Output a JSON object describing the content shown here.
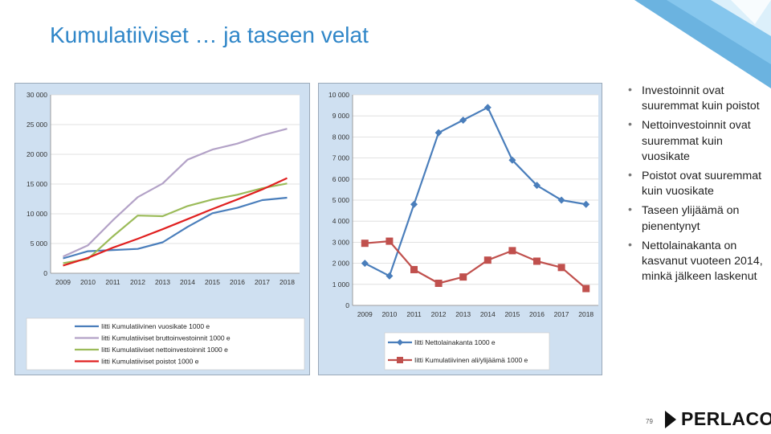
{
  "slide": {
    "title": "Kumulatiiviset … ja taseen velat",
    "page_number": "79",
    "logo_text": "PERLACON",
    "accent_color": "#2f86c8"
  },
  "bullets": [
    "Investoinnit ovat suuremmat kuin poistot",
    "Nettoinvestoinnit ovat suuremmat kuin vuosikate",
    "Poistot ovat suuremmat kuin vuosikate",
    "Taseen ylijäämä on pienentynyt",
    "Nettolainakanta on kasvanut vuoteen 2014, minkä jälkeen laskenut"
  ],
  "chart_data": [
    {
      "type": "line",
      "title": "",
      "xlabel": "",
      "ylabel": "",
      "x": [
        "2009",
        "2010",
        "2011",
        "2012",
        "2013",
        "2014",
        "2015",
        "2016",
        "2017",
        "2018"
      ],
      "ylim": [
        0,
        30000
      ],
      "yticks": [
        "0",
        "5 000",
        "10 000",
        "15 000",
        "20 000",
        "25 000",
        "30 000"
      ],
      "ytick_values": [
        0,
        5000,
        10000,
        15000,
        20000,
        25000,
        30000
      ],
      "grid": true,
      "legend": "bottom",
      "series": [
        {
          "name": "Iitti Kumulatiivinen vuosikate 1000 e",
          "color": "#4a7ebb",
          "markers": false,
          "values": [
            2500,
            3700,
            3900,
            4100,
            5200,
            7800,
            10100,
            11000,
            12300,
            12700
          ]
        },
        {
          "name": "Iitti Kumulatiiviset bruttoinvestoinnit 1000 e",
          "color": "#b3a2c7",
          "markers": false,
          "values": [
            2800,
            4700,
            8900,
            12800,
            15100,
            19100,
            20800,
            21800,
            23200,
            24300
          ]
        },
        {
          "name": "Iitti Kumulatiiviset nettoinvestoinnit 1000 e",
          "color": "#9bbb59",
          "markers": false,
          "values": [
            1700,
            2400,
            6200,
            9700,
            9600,
            11300,
            12400,
            13200,
            14300,
            15100
          ]
        },
        {
          "name": "Iitti Kumulatiiviset poistot 1000 e",
          "color": "#e02020",
          "markers": false,
          "values": [
            1300,
            2600,
            4300,
            5800,
            7400,
            9100,
            10800,
            12400,
            14100,
            16000
          ]
        }
      ]
    },
    {
      "type": "line",
      "title": "",
      "xlabel": "",
      "ylabel": "",
      "x": [
        "2009",
        "2010",
        "2011",
        "2012",
        "2013",
        "2014",
        "2015",
        "2016",
        "2017",
        "2018"
      ],
      "ylim": [
        0,
        10000
      ],
      "yticks": [
        "0",
        "1 000",
        "2 000",
        "3 000",
        "4 000",
        "5 000",
        "6 000",
        "7 000",
        "8 000",
        "9 000",
        "10 000"
      ],
      "ytick_values": [
        0,
        1000,
        2000,
        3000,
        4000,
        5000,
        6000,
        7000,
        8000,
        9000,
        10000
      ],
      "grid": true,
      "legend": "bottom",
      "series": [
        {
          "name": "Iitti Nettolainakanta 1000 e",
          "color": "#4a7ebb",
          "markers": "diamond",
          "values": [
            2000,
            1400,
            4800,
            8200,
            8800,
            9400,
            6900,
            5700,
            5000,
            4800
          ]
        },
        {
          "name": "Iitti Kumulatiivinen ali/ylijäämä 1000 e",
          "color": "#c0504d",
          "markers": "square",
          "values": [
            2950,
            3050,
            1700,
            1050,
            1350,
            2150,
            2600,
            2100,
            1800,
            800
          ]
        }
      ]
    }
  ]
}
